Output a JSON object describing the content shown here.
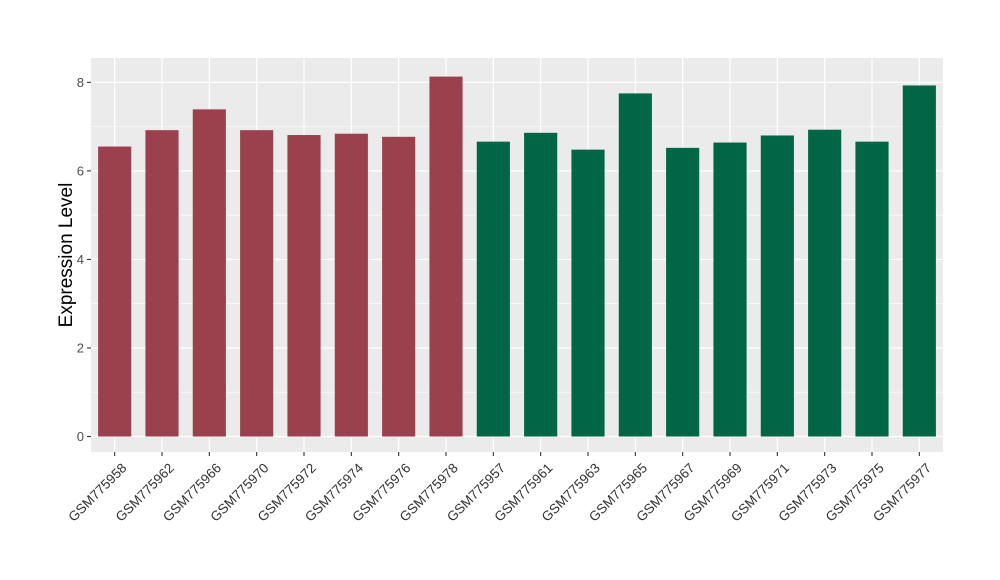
{
  "chart_data": {
    "type": "bar",
    "title": "",
    "xlabel": "",
    "ylabel": "Expression Level",
    "ylim": [
      -0.35,
      8.55
    ],
    "yticks": [
      0,
      2,
      4,
      6,
      8
    ],
    "grid": true,
    "legend": "none",
    "colors": {
      "group1": "#9b414e",
      "group2": "#016645",
      "panel_bg": "#ebebeb",
      "grid": "#ffffff"
    },
    "categories": [
      "GSM775958",
      "GSM775962",
      "GSM775966",
      "GSM775970",
      "GSM775972",
      "GSM775974",
      "GSM775976",
      "GSM775978",
      "GSM775957",
      "GSM775961",
      "GSM775963",
      "GSM775965",
      "GSM775967",
      "GSM775969",
      "GSM775971",
      "GSM775973",
      "GSM775975",
      "GSM775977"
    ],
    "values": [
      6.55,
      6.92,
      7.39,
      6.92,
      6.81,
      6.84,
      6.77,
      8.13,
      6.66,
      6.86,
      6.48,
      7.75,
      6.52,
      6.64,
      6.8,
      6.93,
      6.66,
      7.93
    ],
    "groups": [
      1,
      1,
      1,
      1,
      1,
      1,
      1,
      1,
      2,
      2,
      2,
      2,
      2,
      2,
      2,
      2,
      2,
      2
    ]
  }
}
